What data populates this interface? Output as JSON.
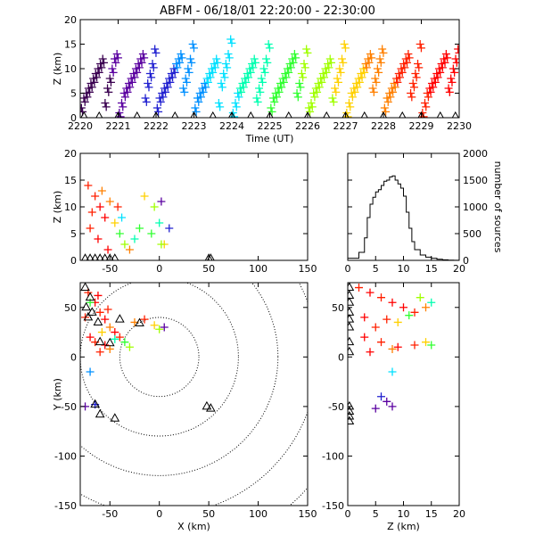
{
  "title": "ABFM - 06/18/01 22:20:00 - 22:30:00",
  "palette": [
    "#3a0050",
    "#5a00a0",
    "#2020d0",
    "#0090ff",
    "#00e0ff",
    "#00ffb0",
    "#30ff30",
    "#a0ff00",
    "#ffd000",
    "#ff8000",
    "#ff2000",
    "#ff0000"
  ],
  "chart_data": [
    {
      "id": "time_height",
      "type": "scatter",
      "xlabel": "Time (UT)",
      "ylabel": "Z (km)",
      "xlim": [
        0,
        10
      ],
      "ylim": [
        0,
        20
      ],
      "xticks": [
        0,
        1,
        2,
        3,
        4,
        5,
        6,
        7,
        8,
        9,
        10
      ],
      "xticklabels": [
        "2220",
        "2221",
        "2222",
        "2223",
        "2224",
        "2225",
        "2226",
        "2227",
        "2228",
        "2229",
        "2230"
      ],
      "yticks": [
        0,
        5,
        10,
        15,
        20
      ],
      "yticklabels": [
        "0",
        "5",
        "10",
        "15",
        "20"
      ],
      "color_by": "time",
      "sources_by_minute": [
        {
          "minute": 0,
          "z": [
            2,
            4,
            5,
            6,
            7,
            8,
            9,
            10,
            11,
            12,
            3,
            6,
            8,
            10,
            12,
            13
          ]
        },
        {
          "minute": 1,
          "z": [
            1,
            3,
            5,
            6,
            7,
            8,
            9,
            10,
            11,
            12,
            13,
            4,
            7,
            9,
            11,
            14
          ]
        },
        {
          "minute": 2,
          "z": [
            2,
            4,
            5,
            6,
            7,
            8,
            9,
            10,
            11,
            12,
            13,
            6,
            8,
            10,
            12,
            15
          ]
        },
        {
          "minute": 3,
          "z": [
            2,
            4,
            5,
            6,
            7,
            8,
            9,
            10,
            11,
            12,
            3,
            7,
            9,
            11,
            13,
            16
          ]
        },
        {
          "minute": 4,
          "z": [
            1,
            3,
            5,
            6,
            7,
            8,
            9,
            10,
            11,
            12,
            4,
            6,
            8,
            10,
            12,
            15
          ]
        },
        {
          "minute": 5,
          "z": [
            2,
            4,
            5,
            6,
            7,
            8,
            9,
            10,
            11,
            12,
            13,
            5,
            7,
            9,
            11,
            14
          ]
        },
        {
          "minute": 6,
          "z": [
            2,
            3,
            5,
            6,
            7,
            8,
            9,
            10,
            11,
            12,
            4,
            6,
            8,
            10,
            12,
            15
          ]
        },
        {
          "minute": 7,
          "z": [
            1,
            3,
            5,
            6,
            7,
            8,
            9,
            10,
            11,
            12,
            13,
            6,
            8,
            10,
            12,
            14
          ]
        },
        {
          "minute": 8,
          "z": [
            2,
            4,
            5,
            6,
            7,
            8,
            9,
            10,
            11,
            12,
            13,
            5,
            7,
            9,
            11,
            15
          ]
        },
        {
          "minute": 9,
          "z": [
            1,
            3,
            5,
            6,
            7,
            8,
            9,
            10,
            11,
            12,
            13,
            6,
            8,
            10,
            12,
            14
          ]
        }
      ],
      "stations_time": [
        0.1,
        0.5,
        1.0,
        1.5,
        2.0,
        2.5,
        3.0,
        3.5,
        4.0,
        4.5,
        5.0,
        5.5,
        6.0,
        6.5,
        7.0,
        7.5,
        8.0,
        8.5,
        9.0,
        9.5,
        9.9
      ]
    },
    {
      "id": "x_height",
      "type": "scatter",
      "xlabel": "",
      "ylabel": "Z (km)",
      "xlim": [
        -80,
        150
      ],
      "ylim": [
        0,
        20
      ],
      "xticks": [
        -50,
        0,
        50,
        100,
        150
      ],
      "xticklabels": [
        "-50",
        "0",
        "50",
        "100",
        "150"
      ],
      "yticks": [
        0,
        5,
        10,
        15,
        20
      ],
      "yticklabels": [
        "0",
        "5",
        "10",
        "15",
        "20"
      ],
      "points": [
        {
          "x": -72,
          "z": 14,
          "c": 10
        },
        {
          "x": -65,
          "z": 12,
          "c": 10
        },
        {
          "x": -60,
          "z": 10,
          "c": 11
        },
        {
          "x": -55,
          "z": 8,
          "c": 11
        },
        {
          "x": -70,
          "z": 6,
          "c": 10
        },
        {
          "x": -62,
          "z": 4,
          "c": 11
        },
        {
          "x": -50,
          "z": 11,
          "c": 9
        },
        {
          "x": -45,
          "z": 7,
          "c": 8
        },
        {
          "x": -40,
          "z": 5,
          "c": 6
        },
        {
          "x": -35,
          "z": 3,
          "c": 7
        },
        {
          "x": -30,
          "z": 2,
          "c": 9
        },
        {
          "x": -25,
          "z": 4,
          "c": 5
        },
        {
          "x": -20,
          "z": 6,
          "c": 6
        },
        {
          "x": -68,
          "z": 9,
          "c": 10
        },
        {
          "x": -58,
          "z": 13,
          "c": 9
        },
        {
          "x": -52,
          "z": 2,
          "c": 11
        },
        {
          "x": -15,
          "z": 12,
          "c": 8
        },
        {
          "x": 2,
          "z": 11,
          "c": 1
        },
        {
          "x": -5,
          "z": 10,
          "c": 7
        },
        {
          "x": 0,
          "z": 7,
          "c": 5
        },
        {
          "x": 10,
          "z": 6,
          "c": 2
        },
        {
          "x": 5,
          "z": 3,
          "c": 8
        },
        {
          "x": 2,
          "z": 3,
          "c": 7
        },
        {
          "x": -8,
          "z": 5,
          "c": 6
        },
        {
          "x": -42,
          "z": 10,
          "c": 10
        },
        {
          "x": -38,
          "z": 8,
          "c": 4
        }
      ],
      "stations_x": [
        -75,
        -70,
        -65,
        -60,
        -55,
        -50,
        -45,
        50,
        52
      ]
    },
    {
      "id": "height_hist",
      "type": "bar",
      "xlabel": "",
      "ylabel": "number of sources",
      "xlim": [
        0,
        20
      ],
      "ylim": [
        0,
        2000
      ],
      "xticks": [
        0,
        5,
        10,
        15,
        20
      ],
      "xticklabels": [
        "0",
        "5",
        "10",
        "15",
        "20"
      ],
      "yticks": [
        0,
        500,
        1000,
        1500,
        2000
      ],
      "yticklabels": [
        "0",
        "500",
        "1000",
        "1500",
        "2000"
      ],
      "bins": [
        {
          "z": 1,
          "n": 40
        },
        {
          "z": 2,
          "n": 150
        },
        {
          "z": 3,
          "n": 420
        },
        {
          "z": 3.5,
          "n": 800
        },
        {
          "z": 4,
          "n": 1050
        },
        {
          "z": 4.5,
          "n": 1180
        },
        {
          "z": 5,
          "n": 1280
        },
        {
          "z": 5.5,
          "n": 1320
        },
        {
          "z": 6,
          "n": 1400
        },
        {
          "z": 6.5,
          "n": 1480
        },
        {
          "z": 7,
          "n": 1500
        },
        {
          "z": 7.5,
          "n": 1560
        },
        {
          "z": 8,
          "n": 1580
        },
        {
          "z": 8.5,
          "n": 1500
        },
        {
          "z": 9,
          "n": 1430
        },
        {
          "z": 9.5,
          "n": 1350
        },
        {
          "z": 10,
          "n": 1200
        },
        {
          "z": 10.5,
          "n": 900
        },
        {
          "z": 11,
          "n": 600
        },
        {
          "z": 11.5,
          "n": 350
        },
        {
          "z": 12,
          "n": 200
        },
        {
          "z": 13,
          "n": 100
        },
        {
          "z": 14,
          "n": 60
        },
        {
          "z": 15,
          "n": 40
        },
        {
          "z": 16,
          "n": 20
        },
        {
          "z": 17,
          "n": 10
        },
        {
          "z": 18,
          "n": 5
        },
        {
          "z": 19,
          "n": 2
        }
      ]
    },
    {
      "id": "plan_view",
      "type": "scatter",
      "xlabel": "X (km)",
      "ylabel": "Y (km)",
      "xlim": [
        -80,
        150
      ],
      "ylim": [
        -150,
        75
      ],
      "xticks": [
        -50,
        0,
        50,
        100,
        150
      ],
      "xticklabels": [
        "-50",
        "0",
        "50",
        "100",
        "150"
      ],
      "yticks": [
        -150,
        -100,
        -50,
        0,
        50
      ],
      "yticklabels": [
        "-150",
        "-100",
        "-50",
        "0",
        "50"
      ],
      "range_rings_km": [
        40,
        80,
        120,
        160,
        200
      ],
      "points": [
        {
          "x": -72,
          "y": 65,
          "c": 10
        },
        {
          "x": -65,
          "y": 55,
          "c": 11
        },
        {
          "x": -60,
          "y": 45,
          "c": 10
        },
        {
          "x": -55,
          "y": 38,
          "c": 11
        },
        {
          "x": -50,
          "y": 30,
          "c": 9
        },
        {
          "x": -45,
          "y": 25,
          "c": 11
        },
        {
          "x": -40,
          "y": 20,
          "c": 10
        },
        {
          "x": -35,
          "y": 15,
          "c": 6
        },
        {
          "x": -30,
          "y": 10,
          "c": 7
        },
        {
          "x": -70,
          "y": 20,
          "c": 11
        },
        {
          "x": -65,
          "y": 15,
          "c": 10
        },
        {
          "x": -55,
          "y": 12,
          "c": 11
        },
        {
          "x": -50,
          "y": 8,
          "c": 9
        },
        {
          "x": -60,
          "y": 5,
          "c": 10
        },
        {
          "x": -45,
          "y": 18,
          "c": 5
        },
        {
          "x": -58,
          "y": 25,
          "c": 8
        },
        {
          "x": -25,
          "y": 35,
          "c": 9
        },
        {
          "x": -15,
          "y": 38,
          "c": 10
        },
        {
          "x": -5,
          "y": 32,
          "c": 8
        },
        {
          "x": 5,
          "y": 30,
          "c": 1
        },
        {
          "x": 0,
          "y": 28,
          "c": 7
        },
        {
          "x": -70,
          "y": 55,
          "c": 6
        },
        {
          "x": -62,
          "y": 62,
          "c": 11
        },
        {
          "x": -75,
          "y": 40,
          "c": 10
        },
        {
          "x": -52,
          "y": 48,
          "c": 10
        },
        {
          "x": -70,
          "y": -15,
          "c": 3
        },
        {
          "x": -75,
          "y": -50,
          "c": 1
        },
        {
          "x": -65,
          "y": -48,
          "c": 2
        }
      ],
      "stations": [
        {
          "x": -75,
          "y": 70
        },
        {
          "x": -70,
          "y": 60
        },
        {
          "x": -74,
          "y": 50
        },
        {
          "x": -68,
          "y": 45
        },
        {
          "x": -72,
          "y": 40
        },
        {
          "x": -62,
          "y": 35
        },
        {
          "x": -60,
          "y": 15
        },
        {
          "x": -50,
          "y": 14
        },
        {
          "x": -40,
          "y": 38
        },
        {
          "x": -20,
          "y": 34
        },
        {
          "x": -65,
          "y": -48
        },
        {
          "x": -60,
          "y": -58
        },
        {
          "x": -45,
          "y": -62
        },
        {
          "x": 48,
          "y": -50
        },
        {
          "x": 52,
          "y": -52
        }
      ]
    },
    {
      "id": "height_y",
      "type": "scatter",
      "xlabel": "Z (km)",
      "ylabel": "",
      "xlim": [
        0,
        20
      ],
      "ylim": [
        -150,
        75
      ],
      "xticks": [
        0,
        5,
        10,
        15,
        20
      ],
      "xticklabels": [
        "0",
        "5",
        "10",
        "15",
        "20"
      ],
      "yticks": [
        -150,
        -100,
        -50,
        0,
        50
      ],
      "yticklabels": [
        "-150",
        "-100",
        "-50",
        "0",
        "50"
      ],
      "points": [
        {
          "z": 2,
          "y": 70,
          "c": 10
        },
        {
          "z": 4,
          "y": 65,
          "c": 11
        },
        {
          "z": 6,
          "y": 60,
          "c": 10
        },
        {
          "z": 8,
          "y": 55,
          "c": 11
        },
        {
          "z": 10,
          "y": 50,
          "c": 11
        },
        {
          "z": 12,
          "y": 45,
          "c": 10
        },
        {
          "z": 14,
          "y": 50,
          "c": 9
        },
        {
          "z": 3,
          "y": 40,
          "c": 11
        },
        {
          "z": 7,
          "y": 38,
          "c": 10
        },
        {
          "z": 11,
          "y": 42,
          "c": 6
        },
        {
          "z": 5,
          "y": 30,
          "c": 10
        },
        {
          "z": 9,
          "y": 35,
          "c": 8
        },
        {
          "z": 13,
          "y": 60,
          "c": 7
        },
        {
          "z": 15,
          "y": 55,
          "c": 5
        },
        {
          "z": 3,
          "y": 20,
          "c": 11
        },
        {
          "z": 6,
          "y": 15,
          "c": 10
        },
        {
          "z": 9,
          "y": 10,
          "c": 11
        },
        {
          "z": 12,
          "y": 12,
          "c": 10
        },
        {
          "z": 4,
          "y": 5,
          "c": 11
        },
        {
          "z": 8,
          "y": 8,
          "c": 9
        },
        {
          "z": 14,
          "y": 15,
          "c": 8
        },
        {
          "z": 15,
          "y": 12,
          "c": 6
        },
        {
          "z": 8,
          "y": -15,
          "c": 4
        },
        {
          "z": 6,
          "y": -40,
          "c": 2
        },
        {
          "z": 7,
          "y": -45,
          "c": 1
        },
        {
          "z": 5,
          "y": -52,
          "c": 1
        },
        {
          "z": 8,
          "y": -50,
          "c": 1
        }
      ],
      "stations_y": [
        70,
        62,
        55,
        45,
        38,
        30,
        15,
        5,
        -50,
        -55,
        -60,
        -65
      ]
    }
  ]
}
